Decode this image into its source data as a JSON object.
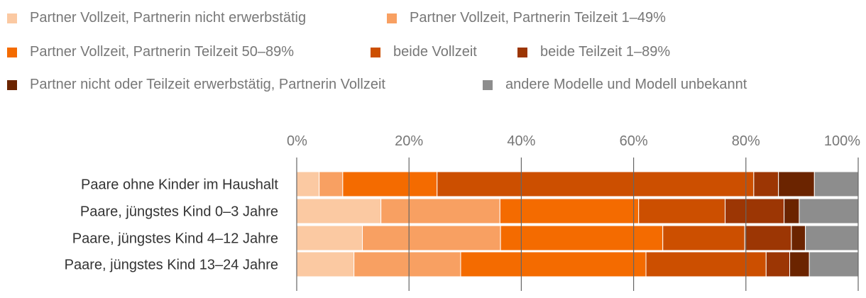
{
  "chart_data": {
    "type": "bar",
    "orientation": "horizontal",
    "stacked": true,
    "title": "",
    "xlabel": "",
    "ylabel": "",
    "xlim": [
      0,
      100
    ],
    "xticks": [
      0,
      20,
      40,
      60,
      80,
      100
    ],
    "tick_labels": [
      "0%",
      "20%",
      "40%",
      "60%",
      "80%",
      "100%"
    ],
    "legend_position": "top",
    "categories": [
      "Paare ohne Kinder im Haushalt",
      "Paare, jüngstes Kind 0–3 Jahre",
      "Paare, jüngstes Kind 4–12 Jahre",
      "Paare, jüngstes Kind 13–24 Jahre"
    ],
    "series": [
      {
        "name": "Partner Vollzeit, Partnerin nicht erwerbstätig",
        "color": "#fbc9a2",
        "values": [
          4.0,
          15.0,
          11.7,
          10.2
        ]
      },
      {
        "name": "Partner Vollzeit, Partnerin Teilzeit 1–49%",
        "color": "#f8a062",
        "values": [
          4.2,
          21.2,
          24.6,
          19.0
        ]
      },
      {
        "name": "Partner Vollzeit, Partnerin Teilzeit 50–89%",
        "color": "#f46b00",
        "values": [
          16.8,
          24.7,
          28.9,
          33.0
        ]
      },
      {
        "name": "beide Vollzeit",
        "color": "#cc4f00",
        "values": [
          56.4,
          15.4,
          14.6,
          21.4
        ]
      },
      {
        "name": "beide Teilzeit 1–89%",
        "color": "#9c3604",
        "values": [
          4.4,
          10.5,
          8.3,
          4.2
        ]
      },
      {
        "name": "Partner nicht oder Teilzeit erwerbstätig, Partnerin Vollzeit",
        "color": "#6b2400",
        "values": [
          6.4,
          2.7,
          2.5,
          3.5
        ]
      },
      {
        "name": "andere Modelle und Modell unbekannt",
        "color": "#8d8d8d",
        "values": [
          7.8,
          10.5,
          9.4,
          8.7
        ]
      }
    ]
  }
}
